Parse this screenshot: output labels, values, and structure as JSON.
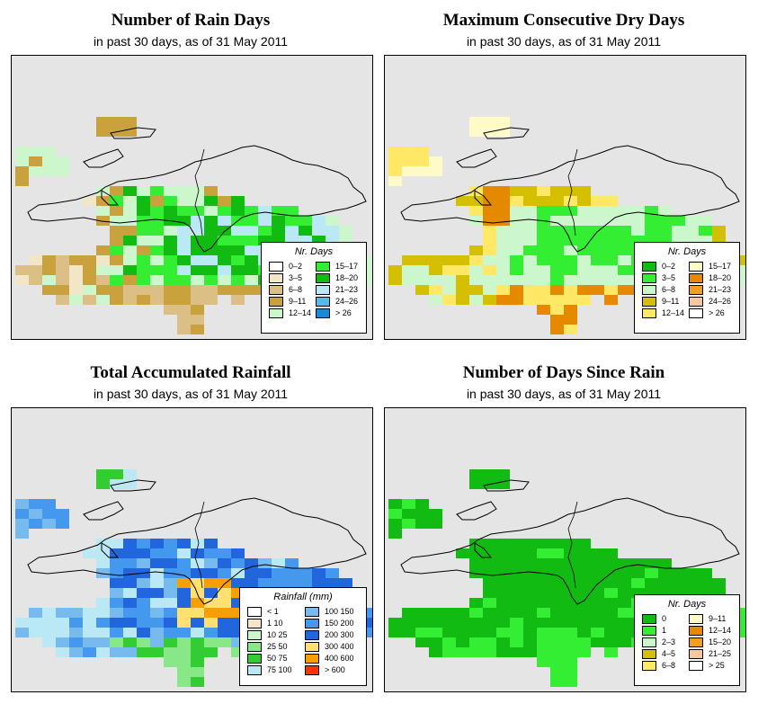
{
  "panels": [
    {
      "title": "Number of Rain Days",
      "subtitle": "in past 30 days, as of  31 May 2011",
      "legend": {
        "title": "Nr. Days",
        "items": [
          {
            "label": "0–2",
            "color": "#ffffff"
          },
          {
            "label": "3–5",
            "color": "#f2e6c8"
          },
          {
            "label": "6–8",
            "color": "#dcbf85"
          },
          {
            "label": "9–11",
            "color": "#c9a23d"
          },
          {
            "label": "12–14",
            "color": "#ccf7cc"
          },
          {
            "label": "15–17",
            "color": "#33ee33"
          },
          {
            "label": "18–20",
            "color": "#11bb11"
          },
          {
            "label": "21–23",
            "color": "#bbe8f5"
          },
          {
            "label": "24–26",
            "color": "#55bbee"
          },
          {
            "label": "> 26",
            "color": "#1a8ad4"
          }
        ]
      }
    },
    {
      "title": "Maximum Consecutive Dry Days",
      "subtitle": "in past 30 days, as of  31 May 2011",
      "legend": {
        "title": "Nr. Days",
        "items": [
          {
            "label": "0–2",
            "color": "#11bb11"
          },
          {
            "label": "3–5",
            "color": "#33ee33"
          },
          {
            "label": "6–8",
            "color": "#ccf7cc"
          },
          {
            "label": "9–11",
            "color": "#d4c000"
          },
          {
            "label": "12–14",
            "color": "#ffe866"
          },
          {
            "label": "15–17",
            "color": "#fffbc8"
          },
          {
            "label": "18–20",
            "color": "#e58a00"
          },
          {
            "label": "21–23",
            "color": "#f0a020"
          },
          {
            "label": "24–26",
            "color": "#f5c8a0"
          },
          {
            "label": "> 26",
            "color": "#ffffff"
          }
        ]
      }
    },
    {
      "title": "Total Accumulated Rainfall",
      "subtitle": "in past 30 days, as of  31 May 2011",
      "legend": {
        "title": "Rainfall (mm)",
        "items": [
          {
            "label": "< 1",
            "color": "#ffffff"
          },
          {
            "label": "1    10",
            "color": "#f5e6c8"
          },
          {
            "label": "10    25",
            "color": "#ccf7cc"
          },
          {
            "label": "25    50",
            "color": "#88e888"
          },
          {
            "label": "50    75",
            "color": "#33cc33"
          },
          {
            "label": "75    100",
            "color": "#bbe8f5"
          },
          {
            "label": "100    150",
            "color": "#77bbee"
          },
          {
            "label": "150    200",
            "color": "#4499ee"
          },
          {
            "label": "200    300",
            "color": "#2266dd"
          },
          {
            "label": "300    400",
            "color": "#ffe070"
          },
          {
            "label": "400    600",
            "color": "#f5a000"
          },
          {
            "label": "> 600",
            "color": "#ff3300"
          }
        ]
      }
    },
    {
      "title": "Number of Days Since Rain",
      "subtitle": "in past 30 days, as of  31 May 2011",
      "legend": {
        "title": "Nr. Days",
        "items": [
          {
            "label": "0",
            "color": "#11bb11"
          },
          {
            "label": "1",
            "color": "#33ee33"
          },
          {
            "label": "2–3",
            "color": "#ccf7cc"
          },
          {
            "label": "4–5",
            "color": "#d4c000"
          },
          {
            "label": "6–8",
            "color": "#ffe866"
          },
          {
            "label": "9–11",
            "color": "#fffbc8"
          },
          {
            "label": "12–14",
            "color": "#e58a00"
          },
          {
            "label": "15–20",
            "color": "#f0a020"
          },
          {
            "label": "21–25",
            "color": "#f5c8a0"
          },
          {
            "label": "> 25",
            "color": "#ffffff"
          }
        ]
      }
    }
  ]
}
